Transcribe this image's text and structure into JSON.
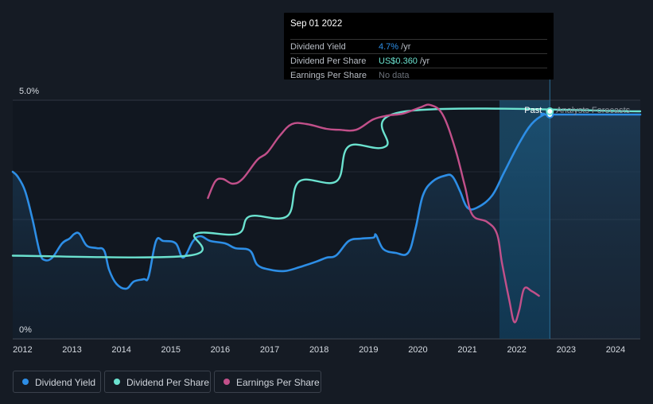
{
  "tooltip": {
    "date": "Sep 01 2022",
    "rows": [
      {
        "label": "Dividend Yield",
        "value": "4.7%",
        "suffix": " /yr",
        "color": "#2d8ee6"
      },
      {
        "label": "Dividend Per Share",
        "value": "US$0.360",
        "suffix": " /yr",
        "color": "#6be2cf"
      },
      {
        "label": "Earnings Per Share",
        "value": "No data",
        "suffix": "",
        "color": "#6c727b"
      }
    ]
  },
  "legend": [
    {
      "label": "Dividend Yield",
      "color": "#2d8ee6"
    },
    {
      "label": "Dividend Per Share",
      "color": "#6be2cf"
    },
    {
      "label": "Earnings Per Share",
      "color": "#c2508a"
    }
  ],
  "chart_data": {
    "type": "line",
    "y_ticks": [
      "5.0%",
      "0%"
    ],
    "ylim": [
      0,
      5.0
    ],
    "x_ticks": [
      "2012",
      "2013",
      "2014",
      "2015",
      "2016",
      "2017",
      "2018",
      "2019",
      "2020",
      "2021",
      "2022",
      "2023",
      "2024"
    ],
    "xlim": [
      2011.8,
      2024.5
    ],
    "past_label": "Past",
    "forecast_label": "Analysts Forecasts",
    "forecast_start": 2021.65,
    "marker_x": 2022.67,
    "series": [
      {
        "name": "Dividend Yield",
        "color": "#2d8ee6",
        "unit": "%",
        "points": [
          [
            2011.8,
            3.5
          ],
          [
            2011.9,
            3.4
          ],
          [
            2012.05,
            3.1
          ],
          [
            2012.2,
            2.5
          ],
          [
            2012.35,
            1.8
          ],
          [
            2012.45,
            1.65
          ],
          [
            2012.6,
            1.7
          ],
          [
            2012.8,
            2.0
          ],
          [
            2012.95,
            2.1
          ],
          [
            2013.05,
            2.2
          ],
          [
            2013.15,
            2.2
          ],
          [
            2013.3,
            1.95
          ],
          [
            2013.5,
            1.9
          ],
          [
            2013.65,
            1.85
          ],
          [
            2013.75,
            1.45
          ],
          [
            2013.9,
            1.15
          ],
          [
            2014.1,
            1.05
          ],
          [
            2014.25,
            1.2
          ],
          [
            2014.45,
            1.25
          ],
          [
            2014.55,
            1.3
          ],
          [
            2014.7,
            2.05
          ],
          [
            2014.85,
            2.05
          ],
          [
            2015.1,
            2.0
          ],
          [
            2015.25,
            1.7
          ],
          [
            2015.45,
            2.05
          ],
          [
            2015.6,
            2.15
          ],
          [
            2015.8,
            2.05
          ],
          [
            2016.1,
            2.0
          ],
          [
            2016.3,
            1.9
          ],
          [
            2016.6,
            1.85
          ],
          [
            2016.75,
            1.55
          ],
          [
            2017.0,
            1.45
          ],
          [
            2017.3,
            1.42
          ],
          [
            2017.6,
            1.5
          ],
          [
            2017.95,
            1.62
          ],
          [
            2018.15,
            1.7
          ],
          [
            2018.35,
            1.75
          ],
          [
            2018.6,
            2.05
          ],
          [
            2018.85,
            2.1
          ],
          [
            2019.1,
            2.12
          ],
          [
            2019.15,
            2.18
          ],
          [
            2019.3,
            1.88
          ],
          [
            2019.55,
            1.8
          ],
          [
            2019.8,
            1.8
          ],
          [
            2019.95,
            2.3
          ],
          [
            2020.1,
            3.0
          ],
          [
            2020.3,
            3.3
          ],
          [
            2020.55,
            3.42
          ],
          [
            2020.7,
            3.4
          ],
          [
            2020.85,
            3.1
          ],
          [
            2021.0,
            2.75
          ],
          [
            2021.2,
            2.75
          ],
          [
            2021.5,
            3.0
          ],
          [
            2021.75,
            3.5
          ],
          [
            2022.05,
            4.1
          ],
          [
            2022.3,
            4.5
          ],
          [
            2022.55,
            4.7
          ],
          [
            2022.67,
            4.7
          ],
          [
            2024.5,
            4.7
          ]
        ]
      },
      {
        "name": "Dividend Per Share",
        "color": "#6be2cf",
        "unit": "US$/yr",
        "points": [
          [
            2011.8,
            0.195
          ],
          [
            2015.35,
            0.195
          ],
          [
            2015.5,
            0.22
          ],
          [
            2016.35,
            0.22
          ],
          [
            2016.6,
            0.24
          ],
          [
            2017.35,
            0.24
          ],
          [
            2017.6,
            0.28
          ],
          [
            2018.35,
            0.28
          ],
          [
            2018.6,
            0.32
          ],
          [
            2019.35,
            0.32
          ],
          [
            2019.75,
            0.36
          ],
          [
            2024.5,
            0.36
          ]
        ]
      },
      {
        "name": "Earnings Per Share",
        "color": "#c2508a",
        "unit": "US$",
        "points": [
          [
            2015.75,
            2.95
          ],
          [
            2015.9,
            3.3
          ],
          [
            2016.05,
            3.35
          ],
          [
            2016.25,
            3.25
          ],
          [
            2016.45,
            3.35
          ],
          [
            2016.75,
            3.75
          ],
          [
            2016.95,
            3.9
          ],
          [
            2017.2,
            4.25
          ],
          [
            2017.45,
            4.5
          ],
          [
            2017.75,
            4.5
          ],
          [
            2018.15,
            4.4
          ],
          [
            2018.4,
            4.38
          ],
          [
            2018.75,
            4.38
          ],
          [
            2019.1,
            4.6
          ],
          [
            2019.4,
            4.68
          ],
          [
            2019.7,
            4.72
          ],
          [
            2020.05,
            4.85
          ],
          [
            2020.25,
            4.9
          ],
          [
            2020.5,
            4.7
          ],
          [
            2020.75,
            4.0
          ],
          [
            2020.95,
            3.2
          ],
          [
            2021.1,
            2.6
          ],
          [
            2021.4,
            2.45
          ],
          [
            2021.6,
            2.2
          ],
          [
            2021.7,
            1.6
          ],
          [
            2021.85,
            0.8
          ],
          [
            2021.95,
            0.35
          ],
          [
            2022.05,
            0.6
          ],
          [
            2022.15,
            1.05
          ],
          [
            2022.3,
            1.0
          ],
          [
            2022.45,
            0.9
          ]
        ]
      }
    ]
  }
}
